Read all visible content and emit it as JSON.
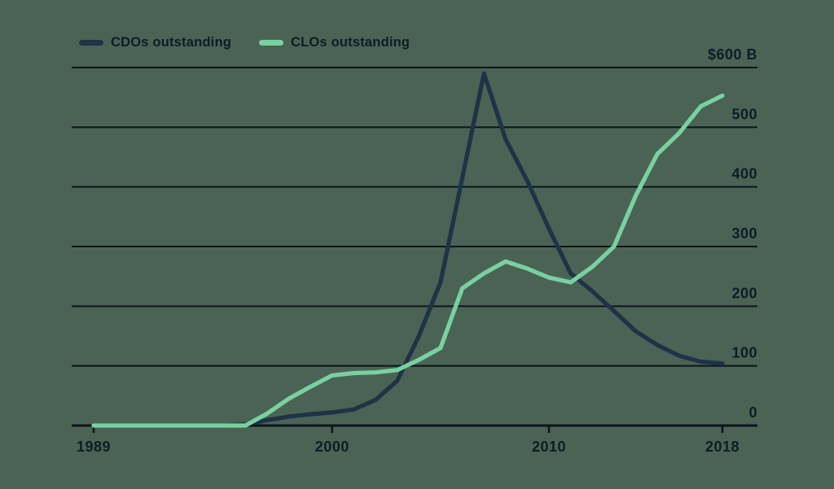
{
  "colors": {
    "background": "#4b6354",
    "text": "#0e1c28",
    "grid": "#0c141c",
    "cdo_line": "#1d3347",
    "clo_line": "#79d1a2"
  },
  "legend": {
    "items": [
      {
        "label": "CDOs outstanding",
        "color": "#1d3347"
      },
      {
        "label": "CLOs outstanding",
        "color": "#79d1a2"
      }
    ]
  },
  "chart_data": {
    "type": "line",
    "title": "",
    "unit": "$ billions",
    "x": [
      1989,
      1990,
      1991,
      1992,
      1993,
      1994,
      1995,
      1996,
      1997,
      1998,
      1999,
      2000,
      2001,
      2002,
      2003,
      2004,
      2005,
      2006,
      2007,
      2008,
      2009,
      2010,
      2011,
      2012,
      2013,
      2014,
      2015,
      2016,
      2017,
      2018
    ],
    "series": [
      {
        "name": "CDOs outstanding",
        "color": "#1d3347",
        "values": [
          0,
          0,
          0,
          0,
          0,
          0,
          0,
          2,
          9,
          15,
          19,
          22,
          27,
          43,
          75,
          150,
          240,
          415,
          590,
          480,
          410,
          330,
          255,
          225,
          192,
          158,
          135,
          117,
          107,
          104
        ]
      },
      {
        "name": "CLOs outstanding",
        "color": "#79d1a2",
        "values": [
          0,
          0,
          0,
          0,
          0,
          0,
          0,
          0,
          20,
          45,
          65,
          84,
          88,
          89,
          93,
          110,
          130,
          230,
          255,
          275,
          263,
          248,
          240,
          266,
          300,
          385,
          455,
          490,
          535,
          553
        ]
      }
    ],
    "ylim": [
      0,
      600
    ],
    "ytick_values": [
      0,
      100,
      200,
      300,
      400,
      500,
      600
    ],
    "ytick_labels": [
      "0",
      "100",
      "200",
      "300",
      "400",
      "500",
      "$600 B"
    ],
    "xtick_values": [
      1989,
      2000,
      2010,
      2018
    ],
    "xtick_labels": [
      "1989",
      "2000",
      "2010",
      "2018"
    ],
    "grid": true,
    "legend_position": "top-left"
  }
}
